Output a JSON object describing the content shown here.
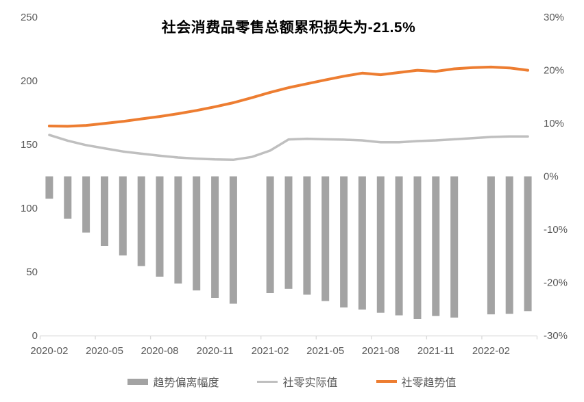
{
  "chart_data": {
    "type": "combo-bar-line",
    "title": "社会消费品零售总额累积损失为-21.5%",
    "grid": false,
    "legend_position": "bottom",
    "categories": [
      "2020-02",
      "2020-03",
      "2020-04",
      "2020-05",
      "2020-06",
      "2020-07",
      "2020-08",
      "2020-09",
      "2020-10",
      "2020-11",
      "2020-12",
      "2021-01",
      "2021-02",
      "2021-03",
      "2021-04",
      "2021-05",
      "2021-06",
      "2021-07",
      "2021-08",
      "2021-09",
      "2021-10",
      "2021-11",
      "2021-12",
      "2022-01",
      "2022-02",
      "2022-03",
      "2022-04"
    ],
    "x_axis": {
      "tick_labels": [
        "2020-02",
        "2020-05",
        "2020-08",
        "2020-11",
        "2021-02",
        "2021-05",
        "2021-08",
        "2021-11",
        "2022-02"
      ],
      "tick_every_n_categories": 3
    },
    "left_axis": {
      "min": 0,
      "max": 250,
      "tick_labels": [
        "250",
        "200",
        "150",
        "100",
        "50",
        "0"
      ]
    },
    "right_axis": {
      "min_pct": -30,
      "max_pct": 30,
      "tick_labels": [
        "30%",
        "20%",
        "10%",
        "0%",
        "-10%",
        "-20%",
        "-30%"
      ]
    },
    "series": [
      {
        "name": "趋势偏离幅度",
        "type": "bar",
        "axis": "right",
        "unit": "%",
        "color": "#A3A3A3",
        "values": [
          -4.2,
          -8.0,
          -10.6,
          -13.1,
          -14.9,
          -16.9,
          -18.9,
          -20.2,
          -21.5,
          -22.9,
          -24.0,
          null,
          -22.0,
          -21.2,
          -22.3,
          -23.5,
          -24.7,
          -25.1,
          -25.7,
          -26.2,
          -26.9,
          -26.3,
          -26.6,
          null,
          -26.0,
          -25.9,
          -25.4
        ]
      },
      {
        "name": "社零实际值",
        "type": "line",
        "axis": "left",
        "color": "#BFBFBF",
        "values": [
          157.5,
          153.0,
          149.5,
          147.0,
          144.5,
          142.8,
          141.2,
          139.8,
          138.9,
          138.3,
          138.0,
          140.2,
          145.2,
          154.0,
          154.5,
          154.1,
          153.8,
          153.2,
          151.8,
          151.8,
          152.7,
          153.2,
          154.1,
          155.0,
          155.9,
          156.3,
          156.3
        ]
      },
      {
        "name": "社零趋势值",
        "type": "line",
        "axis": "left",
        "color": "#ED7D31",
        "values": [
          164.5,
          164.3,
          165.0,
          166.5,
          168.1,
          170.1,
          172.0,
          174.2,
          176.7,
          179.6,
          182.8,
          186.7,
          190.9,
          194.6,
          197.7,
          200.7,
          203.6,
          206.0,
          204.8,
          206.5,
          208.3,
          207.4,
          209.4,
          210.4,
          210.8,
          210.1,
          208.3
        ]
      }
    ],
    "colors": {
      "axis_line": "#D9D9D9",
      "axis_text": "#595959",
      "title_text": "#000000"
    }
  }
}
